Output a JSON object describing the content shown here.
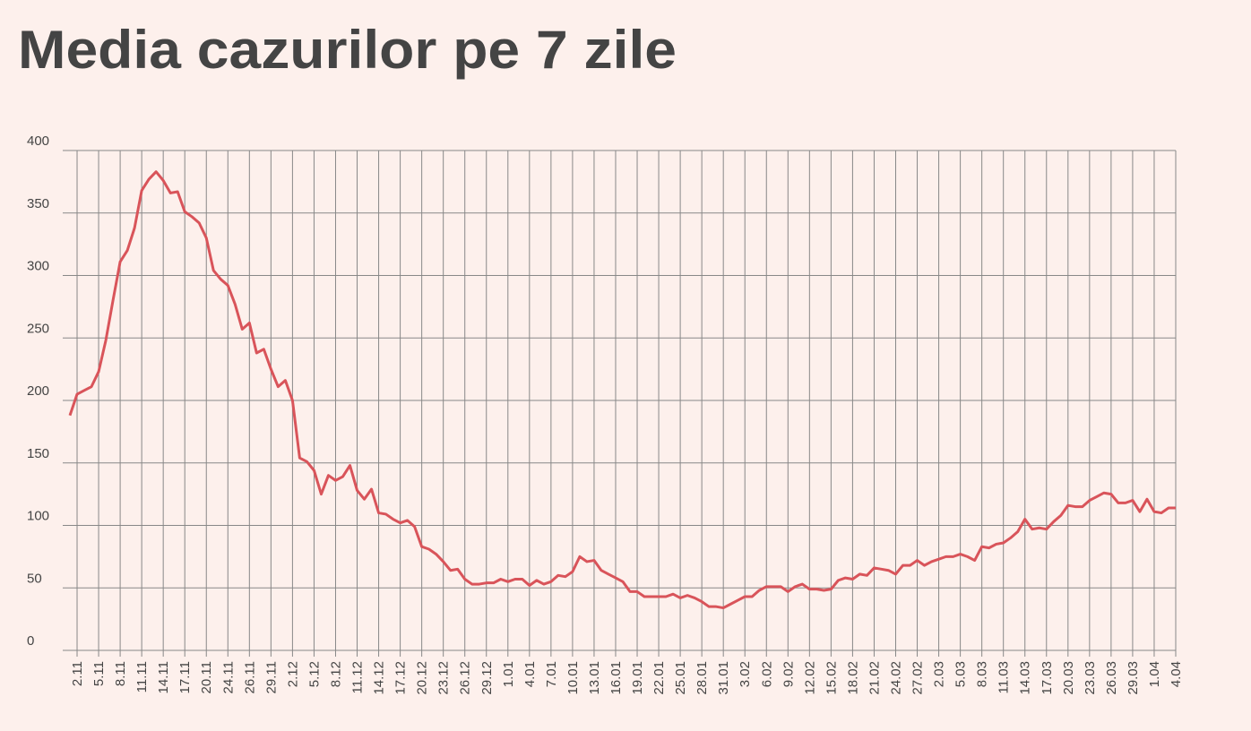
{
  "chart_data": {
    "type": "line",
    "title": "Media cazurilor pe 7 zile",
    "categories": [
      null,
      "2.11",
      null,
      null,
      "5.11",
      null,
      null,
      "8.11",
      null,
      null,
      "11.11",
      null,
      null,
      "14.11",
      null,
      null,
      "17.11",
      null,
      null,
      "20.11",
      null,
      null,
      "24.11",
      null,
      null,
      "26.11",
      null,
      null,
      "29.11",
      null,
      null,
      "2.12",
      null,
      null,
      "5.12",
      null,
      null,
      "8.12",
      null,
      null,
      "11.12",
      null,
      null,
      "14.12",
      null,
      null,
      "17.12",
      null,
      null,
      "20.12",
      null,
      null,
      "23.12",
      null,
      null,
      "26.12",
      null,
      null,
      "29.12",
      null,
      null,
      "1.01",
      null,
      null,
      "4.01",
      null,
      null,
      "7.01",
      null,
      null,
      "10.01",
      null,
      null,
      "13.01",
      null,
      null,
      "16.01",
      null,
      null,
      "19.01",
      null,
      null,
      "22.01",
      null,
      null,
      "25.01",
      null,
      null,
      "28.01",
      null,
      null,
      "31.01",
      null,
      null,
      "3.02",
      null,
      null,
      "6.02",
      null,
      null,
      "9.02",
      null,
      null,
      "12.02",
      null,
      null,
      "15.02",
      null,
      null,
      "18.02",
      null,
      null,
      "21.02",
      null,
      null,
      "24.02",
      null,
      null,
      "27.02",
      null,
      null,
      "2.03",
      null,
      null,
      "5.03",
      null,
      null,
      "8.03",
      null,
      null,
      "11.03",
      null,
      null,
      "14.03",
      null,
      null,
      "17.03",
      null,
      null,
      "20.03",
      null,
      null,
      "23.03",
      null,
      null,
      "26.03",
      null,
      null,
      "29.03",
      null,
      null,
      "1.04",
      null,
      null,
      "4.04"
    ],
    "series": [
      {
        "name": "Media cazurilor pe 7 zile",
        "color": "#d9545a",
        "values": [
          188,
          205,
          208,
          211,
          223,
          248,
          280,
          311,
          320,
          338,
          368,
          377,
          383,
          376,
          366,
          367,
          351,
          347,
          342,
          330,
          304,
          297,
          292,
          277,
          257,
          262,
          238,
          241,
          225,
          211,
          216,
          200,
          154,
          151,
          144,
          125,
          140,
          136,
          139,
          148,
          128,
          121,
          129,
          110,
          109,
          105,
          102,
          104,
          99,
          83,
          81,
          77,
          71,
          64,
          65,
          57,
          53,
          53,
          54,
          54,
          57,
          55,
          57,
          57,
          52,
          56,
          53,
          55,
          60,
          59,
          63,
          75,
          71,
          72,
          64,
          61,
          58,
          55,
          47,
          47,
          43,
          43,
          43,
          43,
          45,
          42,
          44,
          42,
          39,
          35,
          35,
          34,
          37,
          40,
          43,
          43,
          48,
          51,
          51,
          51,
          47,
          51,
          53,
          49,
          49,
          48,
          49,
          56,
          58,
          57,
          61,
          60,
          66,
          65,
          64,
          61,
          68,
          68,
          72,
          68,
          71,
          73,
          75,
          75,
          77,
          75,
          72,
          83,
          82,
          85,
          86,
          90,
          95,
          105,
          97,
          98,
          97,
          103,
          108,
          116,
          115,
          115,
          120,
          123,
          126,
          125,
          118,
          118,
          120,
          111,
          121,
          111,
          110,
          114,
          114
        ]
      }
    ],
    "ylim": [
      0,
      400
    ],
    "yticks": [
      0,
      50,
      100,
      150,
      200,
      250,
      300,
      350,
      400
    ],
    "grid": true
  }
}
